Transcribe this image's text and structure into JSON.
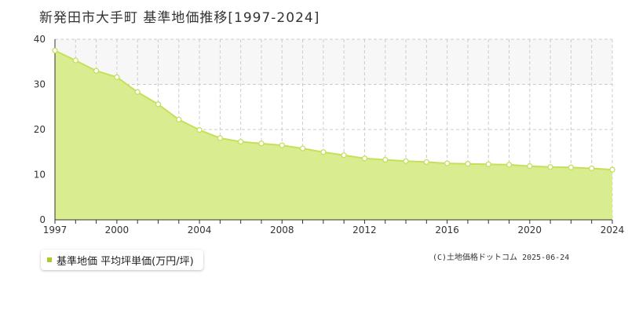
{
  "chart_data": {
    "type": "area",
    "title": "新発田市大手町 基準地価推移[1997-2024]",
    "xlabel": "",
    "ylabel": "",
    "xlim": [
      1997,
      2024
    ],
    "ylim": [
      0,
      40
    ],
    "x_ticks": [
      1997,
      2000,
      2004,
      2008,
      2012,
      2016,
      2020,
      2024
    ],
    "y_ticks": [
      0,
      10,
      20,
      30,
      40
    ],
    "grid": true,
    "legend_position": "bottom-left",
    "x": [
      1997,
      1998,
      1999,
      2000,
      2001,
      2002,
      2003,
      2004,
      2005,
      2006,
      2007,
      2008,
      2009,
      2010,
      2011,
      2012,
      2013,
      2014,
      2015,
      2016,
      2017,
      2018,
      2019,
      2020,
      2021,
      2022,
      2023,
      2024
    ],
    "series": [
      {
        "name": "基準地価 平均坪単価(万円/坪)",
        "color": "#c5e05a",
        "values": [
          37.5,
          35.3,
          33.0,
          31.6,
          28.3,
          25.6,
          22.2,
          19.9,
          18.1,
          17.3,
          16.9,
          16.5,
          15.8,
          15.0,
          14.3,
          13.6,
          13.3,
          13.0,
          12.8,
          12.5,
          12.4,
          12.3,
          12.2,
          11.9,
          11.7,
          11.6,
          11.4,
          11.1
        ]
      }
    ]
  },
  "legend": {
    "label": "基準地価 平均坪単価(万円/坪)"
  },
  "copyright": "(C)土地価格ドットコム 2025-06-24",
  "colors": {
    "line": "#c5e05a",
    "fill": "#d9ec90",
    "band": "#f7f7f7",
    "grid": "#cccccc",
    "axis": "#333333",
    "legend_swatch": "#a8cc2e"
  }
}
